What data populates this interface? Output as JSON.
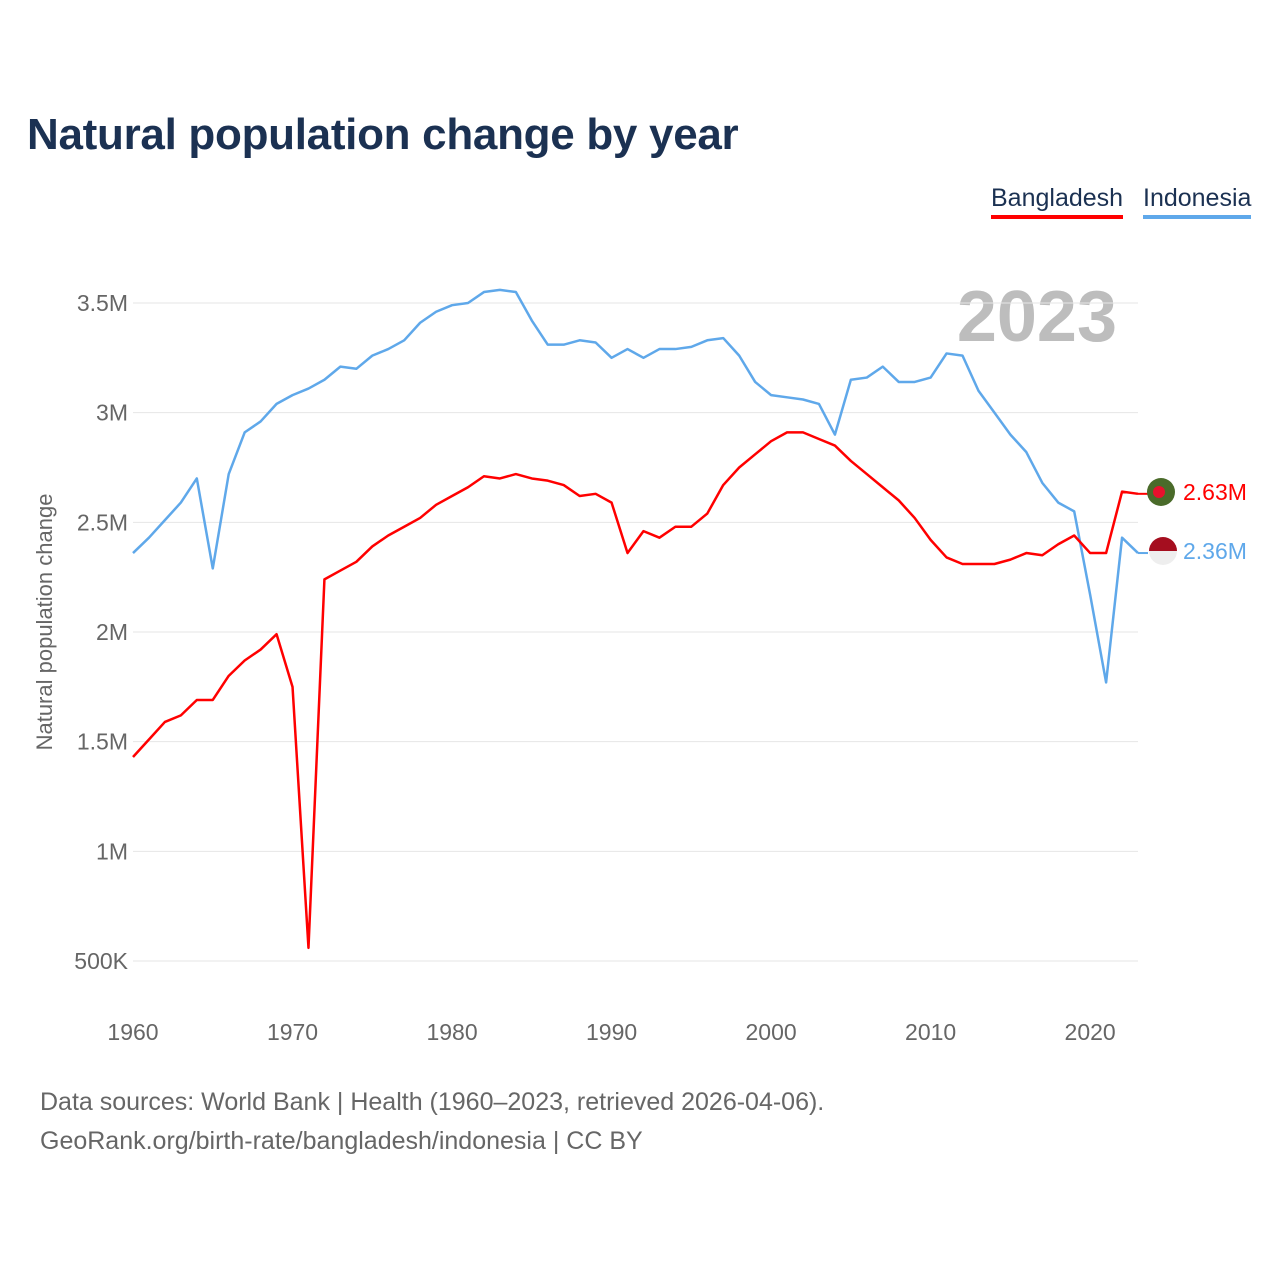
{
  "title": "Natural population change by year",
  "legend": [
    {
      "name": "Bangladesh",
      "color": "#ff0000"
    },
    {
      "name": "Indonesia",
      "color": "#5fa8ea"
    }
  ],
  "year_label": "2023",
  "end_labels": {
    "bangladesh": "2.63M",
    "indonesia": "2.36M"
  },
  "footer": {
    "line1": "Data sources: World Bank | Health (1960–2023, retrieved 2026-04-06).",
    "line2": "GeoRank.org/birth-rate/bangladesh/indonesia | CC BY"
  },
  "chart_data": {
    "type": "line",
    "title": "Natural population change by year",
    "xlabel": "",
    "ylabel": "Natural population change",
    "xlim": [
      1960,
      2023
    ],
    "ylim": [
      0.5,
      3.5
    ],
    "y_unit": "millions",
    "xticks": [
      1960,
      1970,
      1980,
      1990,
      2000,
      2010,
      2020
    ],
    "xtick_labels": [
      "1960",
      "1970",
      "1980",
      "1990",
      "2000",
      "2010",
      "2020"
    ],
    "yticks": [
      0.5,
      1,
      1.5,
      2,
      2.5,
      3,
      3.5
    ],
    "ytick_labels": [
      "500K",
      "1M",
      "1.5M",
      "2M",
      "2.5M",
      "3M",
      "3.5M"
    ],
    "grid": true,
    "legend_position": "top-right",
    "x": [
      1960,
      1961,
      1962,
      1963,
      1964,
      1965,
      1966,
      1967,
      1968,
      1969,
      1970,
      1971,
      1972,
      1973,
      1974,
      1975,
      1976,
      1977,
      1978,
      1979,
      1980,
      1981,
      1982,
      1983,
      1984,
      1985,
      1986,
      1987,
      1988,
      1989,
      1990,
      1991,
      1992,
      1993,
      1994,
      1995,
      1996,
      1997,
      1998,
      1999,
      2000,
      2001,
      2002,
      2003,
      2004,
      2005,
      2006,
      2007,
      2008,
      2009,
      2010,
      2011,
      2012,
      2013,
      2014,
      2015,
      2016,
      2017,
      2018,
      2019,
      2020,
      2021,
      2022,
      2023
    ],
    "series": [
      {
        "name": "Bangladesh",
        "color": "#ff0000",
        "values": [
          1.43,
          1.51,
          1.59,
          1.62,
          1.69,
          1.69,
          1.8,
          1.87,
          1.92,
          1.99,
          1.75,
          0.56,
          2.24,
          2.28,
          2.32,
          2.39,
          2.44,
          2.48,
          2.52,
          2.58,
          2.62,
          2.66,
          2.71,
          2.7,
          2.72,
          2.7,
          2.69,
          2.67,
          2.62,
          2.63,
          2.59,
          2.36,
          2.46,
          2.43,
          2.48,
          2.48,
          2.54,
          2.67,
          2.75,
          2.81,
          2.87,
          2.91,
          2.91,
          2.88,
          2.85,
          2.78,
          2.72,
          2.66,
          2.6,
          2.52,
          2.42,
          2.34,
          2.31,
          2.31,
          2.31,
          2.33,
          2.36,
          2.35,
          2.4,
          2.44,
          2.36,
          2.36,
          2.64,
          2.63
        ]
      },
      {
        "name": "Indonesia",
        "color": "#5fa8ea",
        "values": [
          2.36,
          2.43,
          2.51,
          2.59,
          2.7,
          2.29,
          2.72,
          2.91,
          2.96,
          3.04,
          3.08,
          3.11,
          3.15,
          3.21,
          3.2,
          3.26,
          3.29,
          3.33,
          3.41,
          3.46,
          3.49,
          3.5,
          3.55,
          3.56,
          3.55,
          3.42,
          3.31,
          3.31,
          3.33,
          3.32,
          3.25,
          3.29,
          3.25,
          3.29,
          3.29,
          3.3,
          3.33,
          3.34,
          3.26,
          3.14,
          3.08,
          3.07,
          3.06,
          3.04,
          2.9,
          3.15,
          3.16,
          3.21,
          3.14,
          3.14,
          3.16,
          3.27,
          3.26,
          3.1,
          3.0,
          2.9,
          2.82,
          2.68,
          2.59,
          2.55,
          2.17,
          1.77,
          2.43,
          2.36
        ]
      }
    ]
  }
}
